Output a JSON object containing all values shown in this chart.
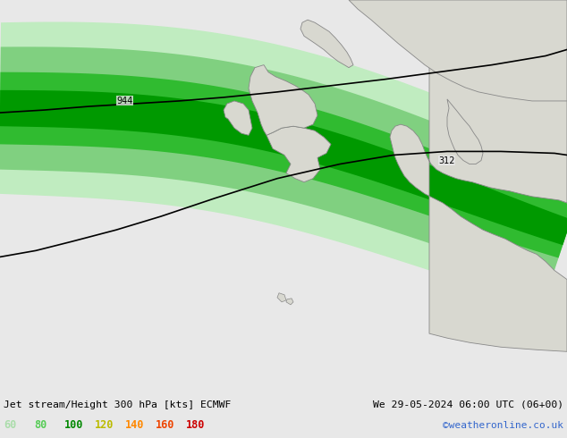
{
  "title_left": "Jet stream/Height 300 hPa [kts] ECMWF",
  "title_right": "We 29-05-2024 06:00 UTC (06+00)",
  "credit": "©weatheronline.co.uk",
  "legend_values": [
    "60",
    "80",
    "100",
    "120",
    "140",
    "160",
    "180"
  ],
  "legend_colors": [
    "#aaddaa",
    "#55cc55",
    "#00aa00",
    "#cccc00",
    "#ff8800",
    "#ff4400",
    "#cc0000"
  ],
  "bg_color": "#e8e8e8",
  "figsize": [
    6.34,
    4.9
  ],
  "dpi": 100,
  "jet_colors": {
    "60": "#c8f0c8",
    "80": "#90d890",
    "100": "#22bb22",
    "120": "#008800"
  },
  "contour1_label": "312",
  "contour2_label": "944"
}
